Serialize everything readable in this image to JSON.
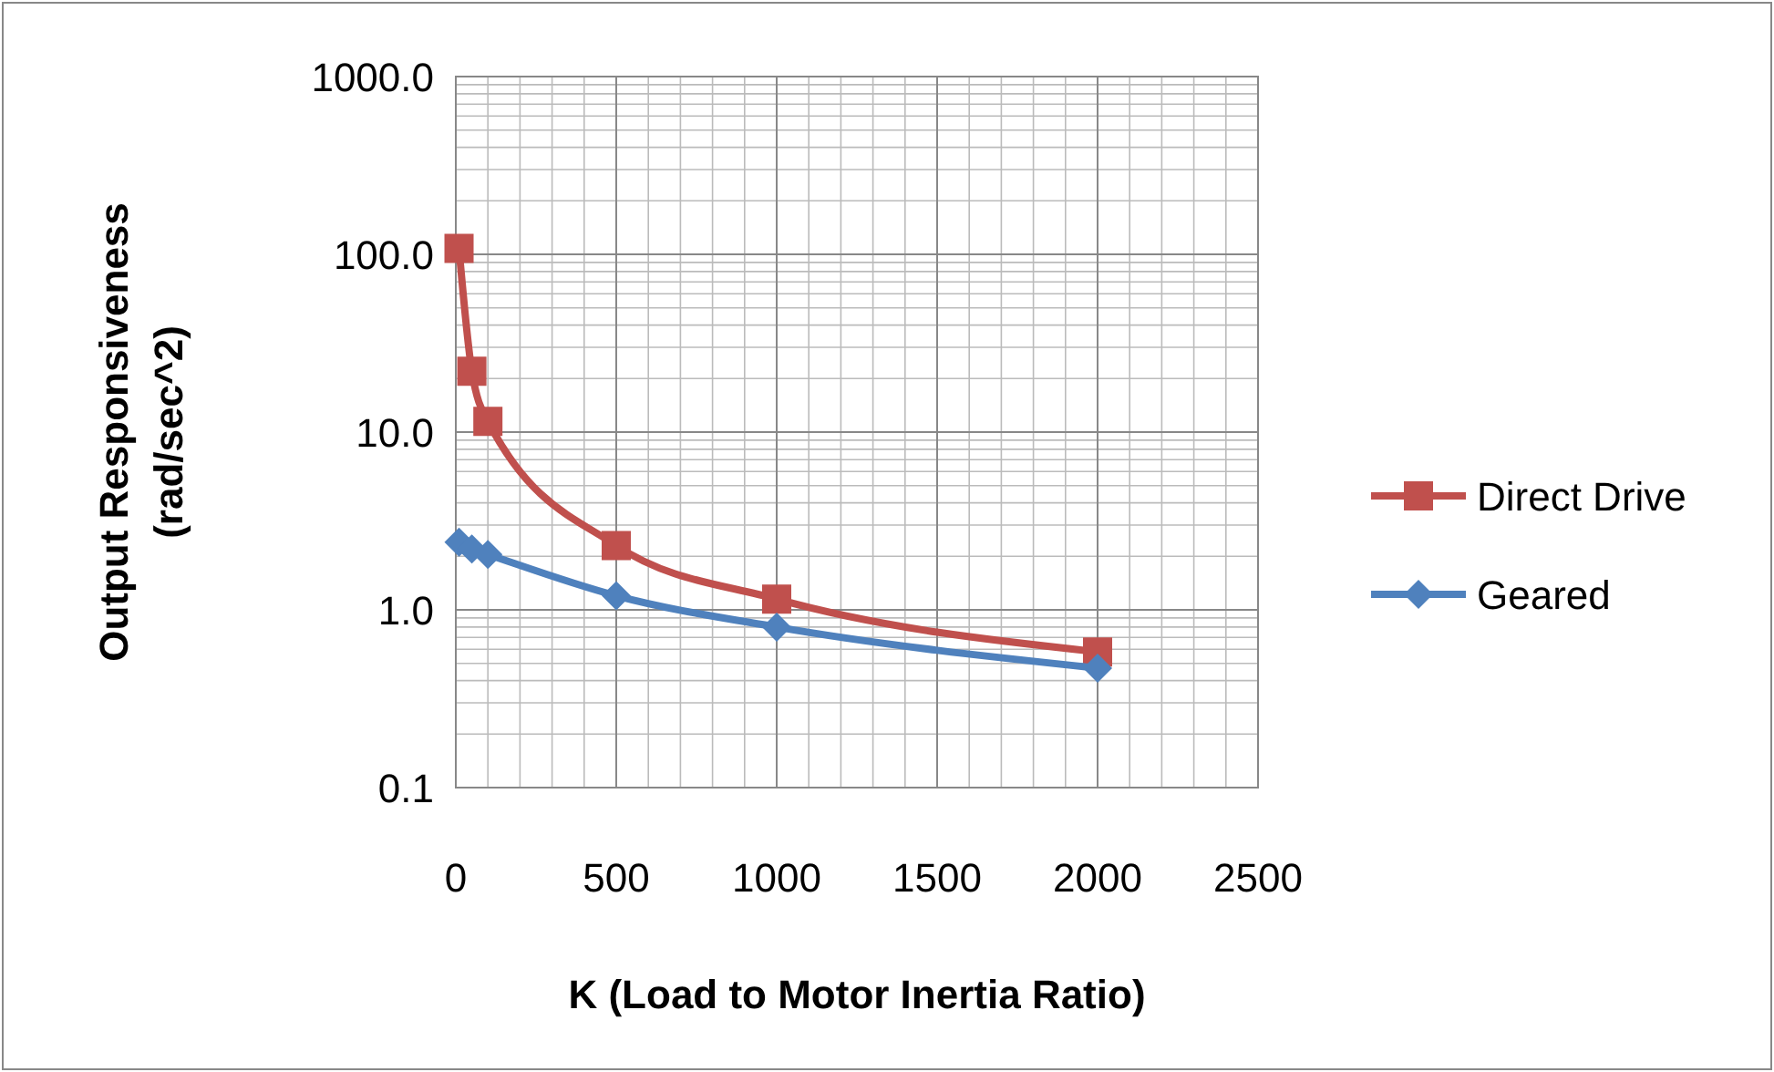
{
  "chart_data": {
    "type": "line",
    "xlabel": "K (Load to Motor Inertia Ratio)",
    "ylabel": "Output Responsiveness (rad/sec^2)",
    "x": [
      10,
      50,
      100,
      500,
      1000,
      2000
    ],
    "series": [
      {
        "name": "Direct Drive",
        "color": "#c0504d",
        "marker": "square",
        "values": [
          108,
          22,
          11.5,
          2.3,
          1.15,
          0.58
        ]
      },
      {
        "name": "Geared",
        "color": "#4f81bd",
        "marker": "diamond",
        "values": [
          2.4,
          2.2,
          2.05,
          1.2,
          0.8,
          0.47
        ]
      }
    ],
    "xlim": [
      0,
      2500
    ],
    "xticks": [
      0,
      500,
      1000,
      1500,
      2000,
      2500
    ],
    "ylim": [
      0.1,
      1000
    ],
    "yticks": [
      {
        "value": 0.1,
        "label": "0.1"
      },
      {
        "value": 1,
        "label": "1.0"
      },
      {
        "value": 10,
        "label": "10.0"
      },
      {
        "value": 100,
        "label": "100.0"
      },
      {
        "value": 1000,
        "label": "1000.0"
      }
    ],
    "log": "y",
    "grid": true,
    "legend": "right",
    "line_style": "solid"
  }
}
